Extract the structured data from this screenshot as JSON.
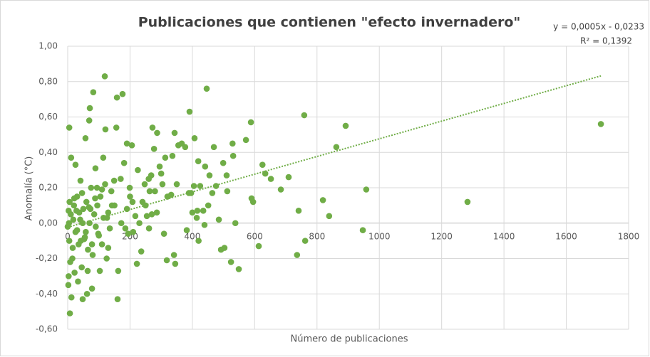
{
  "chart_data": {
    "type": "scatter",
    "title": "Publicaciones que contienen \"efecto invernadero\"",
    "x_label": "Número de publicaciones",
    "y_label": "Anomalía (°C)",
    "color": "#70ad47",
    "grid": true,
    "xlim": [
      0,
      1800
    ],
    "xticks": [
      0,
      200,
      400,
      600,
      800,
      1000,
      1200,
      1400,
      1600,
      1800
    ],
    "ylim": [
      -0.6,
      1.0
    ],
    "yticks": [
      {
        "value": -0.6,
        "label": "-0,60"
      },
      {
        "value": -0.4,
        "label": "-0,40"
      },
      {
        "value": -0.2,
        "label": "-0,20"
      },
      {
        "value": 0,
        "label": "0,00"
      },
      {
        "value": 0.2,
        "label": "0,20"
      },
      {
        "value": 0.4,
        "label": "0,40"
      },
      {
        "value": 0.6,
        "label": "0,60"
      },
      {
        "value": 0.8,
        "label": "0,80"
      },
      {
        "value": 1.0,
        "label": "1,00"
      }
    ],
    "trendline": {
      "slope": 0.0005,
      "intercept": -0.0233,
      "equation": "y = 0,0005x - 0,0233",
      "r2": "R² = 0,1392"
    },
    "x": [
      1711,
      1283,
      958,
      947,
      892,
      862,
      839,
      819,
      762,
      759,
      741,
      736,
      709,
      684,
      652,
      634,
      625,
      613,
      588,
      590,
      595,
      572,
      549,
      538,
      531,
      529,
      524,
      510,
      512,
      503,
      499,
      492,
      485,
      476,
      469,
      464,
      455,
      446,
      451,
      441,
      439,
      435,
      425,
      419,
      414,
      405,
      400,
      396,
      391,
      389,
      416,
      420,
      407,
      382,
      377,
      366,
      355,
      345,
      341,
      343,
      336,
      332,
      318,
      313,
      309,
      304,
      295,
      286,
      287,
      277,
      272,
      268,
      263,
      261,
      254,
      247,
      236,
      222,
      217,
      208,
      206,
      199,
      194,
      190,
      185,
      181,
      176,
      172,
      160,
      162,
      158,
      156,
      149,
      142,
      126,
      130,
      121,
      119,
      114,
      110,
      103,
      98,
      94,
      89,
      82,
      78,
      73,
      71,
      69,
      64,
      62,
      57,
      53,
      48,
      46,
      41,
      37,
      30,
      25,
      21,
      16,
      11,
      7,
      5,
      2,
      3,
      0,
      5,
      10,
      15,
      20,
      25,
      30,
      35,
      40,
      45,
      50,
      55,
      60,
      65,
      70,
      75,
      80,
      85,
      90,
      95,
      100,
      105,
      110,
      115,
      120,
      125,
      130,
      135,
      140,
      3,
      4,
      6,
      8,
      12,
      18,
      22,
      28,
      33,
      42,
      48,
      58,
      68,
      78,
      88,
      150,
      170,
      190,
      200,
      210,
      225,
      240,
      260,
      280,
      300,
      320,
      350,
      230,
      250,
      270
    ],
    "values": [
      0.56,
      0.12,
      0.19,
      -0.04,
      0.55,
      0.43,
      0.04,
      0.13,
      -0.1,
      0.61,
      0.07,
      -0.18,
      0.26,
      0.19,
      0.25,
      0.28,
      0.33,
      -0.13,
      0.57,
      0.14,
      0.12,
      0.47,
      -0.26,
      0.0,
      0.38,
      0.45,
      -0.22,
      0.27,
      0.18,
      -0.14,
      0.34,
      -0.15,
      0.02,
      0.21,
      0.43,
      0.17,
      0.27,
      0.76,
      0.1,
      0.32,
      -0.01,
      0.07,
      0.21,
      0.35,
      0.03,
      0.21,
      0.06,
      0.17,
      0.63,
      0.17,
      0.07,
      -0.1,
      0.48,
      -0.04,
      0.43,
      0.45,
      0.44,
      -0.23,
      -0.18,
      0.51,
      0.38,
      0.16,
      -0.21,
      0.37,
      -0.06,
      0.22,
      0.32,
      0.06,
      0.51,
      0.42,
      0.54,
      0.27,
      0.18,
      -0.03,
      0.04,
      0.22,
      -0.16,
      -0.23,
      0.04,
      0.12,
      0.44,
      0.2,
      -0.06,
      0.45,
      -0.03,
      0.34,
      0.73,
      0.0,
      -0.43,
      -0.27,
      0.71,
      0.54,
      0.24,
      0.1,
      0.03,
      -0.14,
      0.53,
      0.83,
      0.37,
      0.19,
      -0.27,
      -0.06,
      0.2,
      0.31,
      0.74,
      -0.37,
      0.08,
      0.65,
      0.58,
      -0.27,
      -0.4,
      0.48,
      -0.09,
      -0.43,
      0.17,
      0.24,
      0.06,
      -0.04,
      0.33,
      0.14,
      -0.14,
      0.37,
      -0.51,
      0.54,
      -0.35,
      0.07,
      -0.02,
      -0.1,
      0.05,
      -0.2,
      0.1,
      -0.05,
      0.15,
      -0.12,
      0.02,
      -0.25,
      0.08,
      -0.08,
      0.12,
      -0.15,
      0.0,
      0.2,
      -0.18,
      0.05,
      -0.02,
      0.1,
      -0.07,
      0.15,
      -0.12,
      0.03,
      0.22,
      -0.2,
      0.06,
      -0.03,
      0.18,
      -0.3,
      0.0,
      0.12,
      -0.22,
      -0.42,
      0.02,
      -0.28,
      0.07,
      -0.33,
      -0.1,
      0.0,
      -0.05,
      0.09,
      -0.12,
      0.14,
      0.1,
      0.25,
      0.08,
      0.15,
      -0.05,
      0.3,
      0.12,
      0.25,
      0.18,
      0.28,
      0.15,
      0.22,
      0.0,
      0.1,
      0.05
    ]
  }
}
